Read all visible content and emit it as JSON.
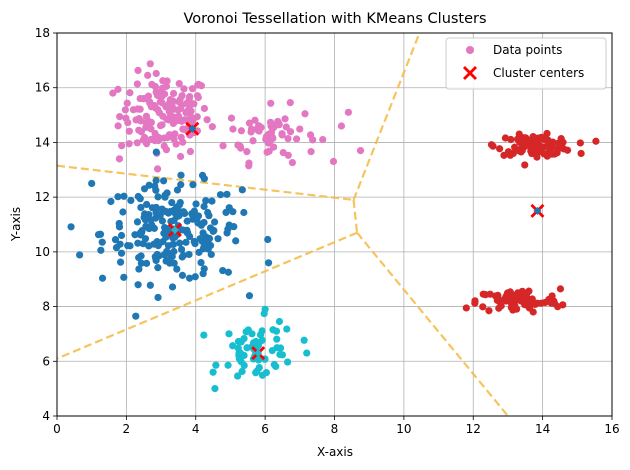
{
  "chart_data": {
    "type": "scatter",
    "title": "Voronoi Tessellation with KMeans Clusters",
    "xlabel": "X-axis",
    "ylabel": "Y-axis",
    "xlim": [
      0,
      16
    ],
    "ylim": [
      4,
      18
    ],
    "xticks": [
      "0",
      "2",
      "4",
      "6",
      "8",
      "10",
      "12",
      "14",
      "16"
    ],
    "yticks": [
      "4",
      "6",
      "8",
      "10",
      "12",
      "14",
      "16",
      "18"
    ],
    "grid": true,
    "legend": {
      "placement": "top-right",
      "entries": [
        {
          "label": "Data points",
          "marker": "circle",
          "color": "#e377c2"
        },
        {
          "label": "Cluster centers",
          "marker": "x",
          "color": "#ff0000"
        }
      ]
    },
    "voronoi_edges": {
      "color": "#f5b942",
      "style": "dashed",
      "segments": [
        [
          [
            0,
            13.15
          ],
          [
            8.55,
            11.9
          ]
        ],
        [
          [
            8.55,
            11.9
          ],
          [
            8.65,
            10.7
          ]
        ],
        [
          [
            8.55,
            11.9
          ],
          [
            10.45,
            18
          ]
        ],
        [
          [
            8.65,
            10.7
          ],
          [
            0,
            6.1
          ]
        ],
        [
          [
            8.65,
            10.7
          ],
          [
            13.0,
            4
          ]
        ]
      ]
    },
    "clusters": [
      {
        "color": "#e377c2",
        "center": [
          3.1,
          15.0
        ],
        "spread": [
          0.65,
          0.75
        ],
        "count": 150
      },
      {
        "color": "#e377c2",
        "center": [
          6.2,
          14.3
        ],
        "spread": [
          0.65,
          0.5
        ],
        "count": 60
      },
      {
        "color": "#1f77b4",
        "center": [
          3.3,
          10.7
        ],
        "spread": [
          1.0,
          0.9
        ],
        "count": 210
      },
      {
        "color": "#17becf",
        "center": [
          5.8,
          6.4
        ],
        "spread": [
          0.55,
          0.55
        ],
        "count": 60
      },
      {
        "color": "#d62728",
        "center": [
          13.8,
          13.9
        ],
        "spread": [
          0.55,
          0.18
        ],
        "count": 90
      },
      {
        "color": "#d62728",
        "center": [
          13.3,
          8.2
        ],
        "spread": [
          0.6,
          0.22
        ],
        "count": 80
      }
    ],
    "extra_points": [
      {
        "x": 8.2,
        "y": 14.6,
        "color": "#e377c2"
      },
      {
        "x": 8.4,
        "y": 15.1,
        "color": "#e377c2"
      },
      {
        "x": 8.75,
        "y": 13.7,
        "color": "#e377c2"
      },
      {
        "x": 1.8,
        "y": 13.4,
        "color": "#e377c2"
      },
      {
        "x": 1.0,
        "y": 12.5,
        "color": "#1f77b4"
      },
      {
        "x": 6.1,
        "y": 9.6,
        "color": "#1f77b4"
      },
      {
        "x": 6.0,
        "y": 7.9,
        "color": "#17becf"
      },
      {
        "x": 4.5,
        "y": 5.6,
        "color": "#17becf"
      },
      {
        "x": 7.2,
        "y": 6.3,
        "color": "#17becf"
      },
      {
        "x": 11.8,
        "y": 7.95,
        "color": "#d62728"
      }
    ],
    "cluster_centers": [
      {
        "x": 3.9,
        "y": 14.5,
        "marker_color": "#1f77b4"
      },
      {
        "x": 3.4,
        "y": 10.8,
        "marker_color": "#17becf"
      },
      {
        "x": 5.8,
        "y": 6.3,
        "marker_color": "#17becf"
      },
      {
        "x": 13.85,
        "y": 11.5,
        "marker_color": "#1f77b4"
      }
    ]
  }
}
